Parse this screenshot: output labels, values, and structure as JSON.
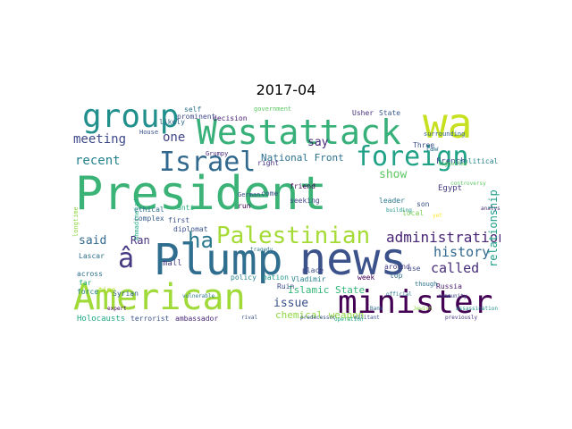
{
  "title": "2017-04",
  "colors": {
    "background": "#ffffff",
    "title_text": "#000000",
    "palette_viridis": [
      "#440154",
      "#472c7a",
      "#3b518b",
      "#2c718e",
      "#21908d",
      "#27ad81",
      "#5cc863",
      "#aadc32",
      "#fde725"
    ]
  },
  "wordcloud": {
    "words": [
      {
        "text": "President",
        "color": "#3bb377",
        "weight": 1.0
      },
      {
        "text": "Plump",
        "color": "#2f6e8e",
        "weight": 0.92
      },
      {
        "text": "news",
        "color": "#3b528b",
        "weight": 0.9
      },
      {
        "text": "wa",
        "color": "#c7e020",
        "weight": 0.78
      },
      {
        "text": "Westattack",
        "color": "#38b07a",
        "weight": 0.75
      },
      {
        "text": "American",
        "color": "#a0da39",
        "weight": 0.7
      },
      {
        "text": "minister",
        "color": "#440154",
        "weight": 0.68
      },
      {
        "text": "group",
        "color": "#21908d",
        "weight": 0.64
      },
      {
        "text": "Israel",
        "color": "#31688e",
        "weight": 0.56
      },
      {
        "text": "foreign",
        "color": "#1fa287",
        "weight": 0.56
      },
      {
        "text": "Palestinian",
        "color": "#a5db36",
        "weight": 0.48
      },
      {
        "text": "ha",
        "color": "#2a788e",
        "weight": 0.48
      },
      {
        "text": "â",
        "color": "#443a83",
        "weight": 0.46
      },
      {
        "text": "administration",
        "color": "#482475",
        "weight": 0.34
      },
      {
        "text": "history",
        "color": "#31688e",
        "weight": 0.28
      },
      {
        "text": "called",
        "color": "#472d7b",
        "weight": 0.28
      },
      {
        "text": "meeting",
        "color": "#3e4989",
        "weight": 0.26
      },
      {
        "text": "recent",
        "color": "#26828e",
        "weight": 0.26
      },
      {
        "text": "one",
        "color": "#414487",
        "weight": 0.26
      },
      {
        "text": "show",
        "color": "#5ec962",
        "weight": 0.26
      },
      {
        "text": "relationship",
        "color": "#1f9e89",
        "weight": 0.24
      },
      {
        "text": "say",
        "color": "#482878",
        "weight": 0.24
      },
      {
        "text": "said",
        "color": "#31688e",
        "weight": 0.24
      },
      {
        "text": "Ran",
        "color": "#46327e",
        "weight": 0.22
      },
      {
        "text": "issue",
        "color": "#3b528b",
        "weight": 0.24
      },
      {
        "text": "National Front",
        "color": "#2c728e",
        "weight": 0.2
      },
      {
        "text": "Islamic State",
        "color": "#35b779",
        "weight": 0.18
      },
      {
        "text": "chemical weapon",
        "color": "#8fd744",
        "weight": 0.18
      },
      {
        "text": "Holocausts",
        "color": "#22a884",
        "weight": 0.14
      },
      {
        "text": "terrorist",
        "color": "#3b528b",
        "weight": 0.13
      },
      {
        "text": "ambassador",
        "color": "#482878",
        "weight": 0.13
      },
      {
        "text": "mall",
        "color": "#443983",
        "weight": 0.12
      },
      {
        "text": "policy",
        "color": "#25848e",
        "weight": 0.12
      },
      {
        "text": "nation",
        "color": "#1f998a",
        "weight": 0.12
      },
      {
        "text": "Ruin",
        "color": "#3e4a89",
        "weight": 0.12
      },
      {
        "text": "Vladimir",
        "color": "#27808e",
        "weight": 0.12
      },
      {
        "text": "week",
        "color": "#440154",
        "weight": 0.12
      },
      {
        "text": "place",
        "color": "#3e4989",
        "weight": 0.11
      },
      {
        "text": "top",
        "color": "#2e6f8e",
        "weight": 0.11
      },
      {
        "text": "French",
        "color": "#3b528b",
        "weight": 0.12
      },
      {
        "text": "Egypt",
        "color": "#433e85",
        "weight": 0.12
      },
      {
        "text": "Russia",
        "color": "#481a6c",
        "weight": 0.11
      },
      {
        "text": "Syrian",
        "color": "#32658e",
        "weight": 0.11
      },
      {
        "text": "force",
        "color": "#26828e",
        "weight": 0.11
      },
      {
        "text": "across",
        "color": "#2d718e",
        "weight": 0.1
      },
      {
        "text": "far",
        "color": "#27ad81",
        "weight": 0.1
      },
      {
        "text": "time",
        "color": "#b5de2b",
        "weight": 0.1
      },
      {
        "text": "first",
        "color": "#3b528b",
        "weight": 0.1
      },
      {
        "text": "anti",
        "color": "#29af7f",
        "weight": 0.1
      },
      {
        "text": "ethical",
        "color": "#2e6d8e",
        "weight": 0.1
      },
      {
        "text": "complex",
        "color": "#365d8d",
        "weight": 0.1
      },
      {
        "text": "diplomat",
        "color": "#3b528b",
        "weight": 0.1
      },
      {
        "text": "run",
        "color": "#440154",
        "weight": 0.1
      },
      {
        "text": "come",
        "color": "#3e4a89",
        "weight": 0.09
      },
      {
        "text": "seeking",
        "color": "#404688",
        "weight": 0.1
      },
      {
        "text": "friend",
        "color": "#440154",
        "weight": 0.1
      },
      {
        "text": "right",
        "color": "#46337f",
        "weight": 0.09
      },
      {
        "text": "leader",
        "color": "#2a788e",
        "weight": 0.1
      },
      {
        "text": "son",
        "color": "#3b528b",
        "weight": 0.1
      },
      {
        "text": "local",
        "color": "#7ad151",
        "weight": 0.09
      },
      {
        "text": "law",
        "color": "#2c738e",
        "weight": 0.09
      },
      {
        "text": "political",
        "color": "#25838e",
        "weight": 0.09
      },
      {
        "text": "Three",
        "color": "#3b528b",
        "weight": 0.09
      },
      {
        "text": "surrounding",
        "color": "#33638d",
        "weight": 0.08
      },
      {
        "text": "State",
        "color": "#375b8d",
        "weight": 0.09
      },
      {
        "text": "Usher",
        "color": "#472f7d",
        "weight": 0.09
      },
      {
        "text": "government",
        "color": "#5cc863",
        "weight": 0.08
      },
      {
        "text": "prominent",
        "color": "#3e4a89",
        "weight": 0.09
      },
      {
        "text": "self",
        "color": "#2c728e",
        "weight": 0.08
      },
      {
        "text": "decision",
        "color": "#482475",
        "weight": 0.09
      },
      {
        "text": "House",
        "color": "#3b528b",
        "weight": 0.08
      },
      {
        "text": "likely",
        "color": "#31688e",
        "weight": 0.09
      },
      {
        "text": "Grumpy",
        "color": "#472a7a",
        "weight": 0.08
      },
      {
        "text": "longtime",
        "color": "#8fd744",
        "weight": 0.08
      },
      {
        "text": "Lascar",
        "color": "#2d708e",
        "weight": 0.08
      },
      {
        "text": "Ahmadinejad",
        "color": "#22a884",
        "weight": 0.07
      },
      {
        "text": "German",
        "color": "#3b528b",
        "weight": 0.07
      },
      {
        "text": "though",
        "color": "#2c728e",
        "weight": 0.08
      },
      {
        "text": "use",
        "color": "#3e4989",
        "weight": 0.08
      },
      {
        "text": "around",
        "color": "#443a83",
        "weight": 0.08
      },
      {
        "text": "building",
        "color": "#1f958b",
        "weight": 0.06
      },
      {
        "text": "controversy",
        "color": "#5ec962",
        "weight": 0.06
      },
      {
        "text": "analysis",
        "color": "#482878",
        "weight": 0.06
      },
      {
        "text": "militant",
        "color": "#3b528b",
        "weight": 0.06
      },
      {
        "text": "official",
        "color": "#2a768e",
        "weight": 0.06
      },
      {
        "text": "Jewish",
        "color": "#8fd744",
        "weight": 0.06
      },
      {
        "text": "community",
        "color": "#3e4989",
        "weight": 0.05
      },
      {
        "text": "Bank",
        "color": "#31688e",
        "weight": 0.06
      },
      {
        "text": "rival",
        "color": "#3b528b",
        "weight": 0.06
      },
      {
        "text": "tragedy",
        "color": "#2c738e",
        "weight": 0.05
      },
      {
        "text": "operation",
        "color": "#22a884",
        "weight": 0.05
      },
      {
        "text": "yet",
        "color": "#fde725",
        "weight": 0.05
      },
      {
        "text": "previously",
        "color": "#46337f",
        "weight": 0.05
      },
      {
        "text": "signalled",
        "color": "#5ec962",
        "weight": 0.05
      },
      {
        "text": "assassination",
        "color": "#21918c",
        "weight": 0.05
      },
      {
        "text": "predecessor",
        "color": "#3b528b",
        "weight": 0.05
      },
      {
        "text": "vulnerable",
        "color": "#2a788e",
        "weight": 0.05
      },
      {
        "text": "expert",
        "color": "#440154",
        "weight": 0.05
      }
    ]
  }
}
